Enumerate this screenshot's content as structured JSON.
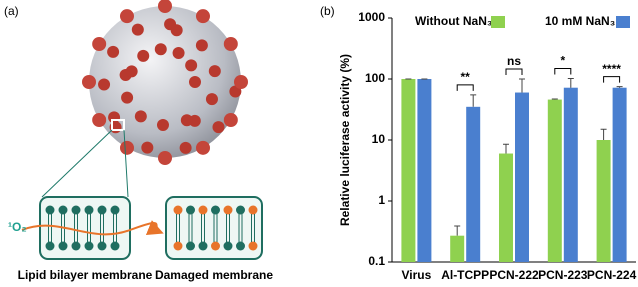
{
  "panel_a": {
    "label": "(a)",
    "singlet_oxygen": "¹O₂",
    "left_membrane": "Lipid bilayer membrane",
    "right_membrane": "Damaged membrane"
  },
  "chart_data": {
    "type": "bar",
    "panel_label": "(b)",
    "y_label": "Relative luciferase activity (%)",
    "categories": [
      "Virus",
      "Al-TCPP",
      "PCN-222",
      "PCN-223",
      "PCN-224"
    ],
    "series": [
      {
        "name": "Without NaN₃",
        "color": "#8fd14f",
        "values": [
          100,
          0.27,
          6,
          46,
          10
        ],
        "errors": [
          0,
          0.12,
          2.5,
          1,
          5
        ]
      },
      {
        "name": "10 mM NaN₃",
        "color": "#4a7fcf",
        "values": [
          100,
          35,
          60,
          72,
          72
        ],
        "errors": [
          0,
          20,
          40,
          30,
          3
        ]
      }
    ],
    "significance": [
      null,
      "**",
      "ns",
      "*",
      "****"
    ],
    "log_scale": true,
    "ylim": [
      0.1,
      1000
    ],
    "yticks": [
      0.1,
      1,
      10,
      100,
      1000
    ]
  }
}
